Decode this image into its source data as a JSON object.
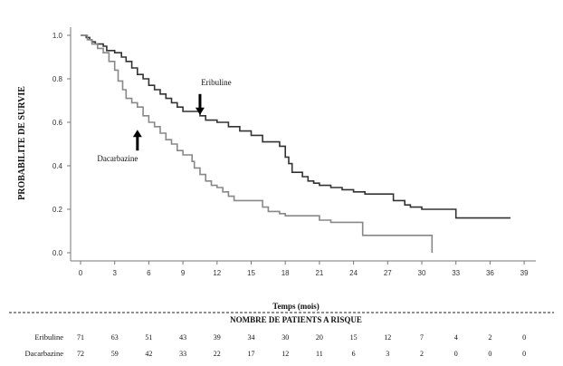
{
  "chart_data": {
    "type": "line",
    "xlabel": "Temps (mois)",
    "ylabel": "PROBABILITE DE SURVIE",
    "xlim": [
      0,
      40
    ],
    "ylim": [
      0,
      1.05
    ],
    "xticks": [
      "0",
      "3",
      "6",
      "9",
      "12",
      "15",
      "18",
      "21",
      "24",
      "27",
      "30",
      "33",
      "36",
      "39"
    ],
    "yticks": [
      "0.0",
      "0.2",
      "0.4",
      "0.6",
      "0.8",
      "1.0"
    ],
    "series": [
      {
        "name": "Eribuline",
        "color": "#333333",
        "x": [
          0,
          0.5,
          0.8,
          1.0,
          1.3,
          2.0,
          2.3,
          3.0,
          3.6,
          4.0,
          4.5,
          5.0,
          5.5,
          6.0,
          6.5,
          7.0,
          7.5,
          8.0,
          8.5,
          9.0,
          10.5,
          11.0,
          12.0,
          13.0,
          14.0,
          15.0,
          16.0,
          17.5,
          18.0,
          18.3,
          18.6,
          19.5,
          20.0,
          20.5,
          21.0,
          22.0,
          23.0,
          24.0,
          25.0,
          27.5,
          28.5,
          29.0,
          30.0,
          33.0,
          35.5,
          37.8
        ],
        "y": [
          1.0,
          0.99,
          0.98,
          0.97,
          0.96,
          0.95,
          0.93,
          0.92,
          0.9,
          0.88,
          0.85,
          0.82,
          0.8,
          0.77,
          0.75,
          0.73,
          0.71,
          0.69,
          0.67,
          0.65,
          0.63,
          0.61,
          0.6,
          0.58,
          0.56,
          0.54,
          0.51,
          0.49,
          0.44,
          0.41,
          0.37,
          0.35,
          0.33,
          0.32,
          0.31,
          0.3,
          0.29,
          0.28,
          0.27,
          0.24,
          0.22,
          0.21,
          0.2,
          0.16,
          0.16,
          0.16
        ]
      },
      {
        "name": "Dacarbazine",
        "color": "#888888",
        "x": [
          0,
          0.6,
          1.0,
          1.5,
          2.0,
          2.5,
          3.0,
          3.3,
          3.7,
          4.0,
          4.5,
          5.0,
          5.5,
          6.0,
          6.5,
          7.0,
          7.5,
          8.0,
          8.5,
          9.0,
          9.8,
          10.0,
          10.5,
          11.0,
          11.5,
          12.0,
          12.5,
          13.0,
          13.5,
          15.0,
          16.0,
          16.5,
          17.5,
          18.0,
          18.5,
          19.0,
          21.0,
          22.0,
          24.5,
          24.8,
          30.5,
          30.9
        ],
        "y": [
          1.0,
          0.98,
          0.96,
          0.94,
          0.92,
          0.88,
          0.84,
          0.79,
          0.75,
          0.71,
          0.69,
          0.67,
          0.63,
          0.6,
          0.58,
          0.55,
          0.52,
          0.5,
          0.47,
          0.45,
          0.42,
          0.39,
          0.36,
          0.33,
          0.31,
          0.3,
          0.28,
          0.26,
          0.24,
          0.24,
          0.21,
          0.19,
          0.18,
          0.17,
          0.17,
          0.17,
          0.15,
          0.14,
          0.14,
          0.08,
          0.08,
          0.0
        ]
      }
    ],
    "annotations": [
      {
        "text": "Eribuline",
        "target_series": "Eribuline",
        "x": 10.5,
        "y": 0.63
      },
      {
        "text": "Dacarbazine",
        "target_series": "Dacarbazine",
        "x": 5.0,
        "y": 0.57
      }
    ],
    "risk_table": {
      "title": "NOMBRE DE PATIENTS A RISQUE",
      "times": [
        0,
        3,
        6,
        9,
        12,
        15,
        18,
        21,
        24,
        27,
        30,
        33,
        36,
        39
      ],
      "rows": [
        {
          "label": "Eribuline",
          "values": [
            "71",
            "63",
            "51",
            "43",
            "39",
            "34",
            "30",
            "20",
            "15",
            "12",
            "7",
            "4",
            "2",
            "0"
          ]
        },
        {
          "label": "Dacarbazine",
          "values": [
            "72",
            "59",
            "42",
            "33",
            "22",
            "17",
            "12",
            "11",
            "6",
            "3",
            "2",
            "0",
            "0",
            "0"
          ]
        }
      ]
    }
  }
}
